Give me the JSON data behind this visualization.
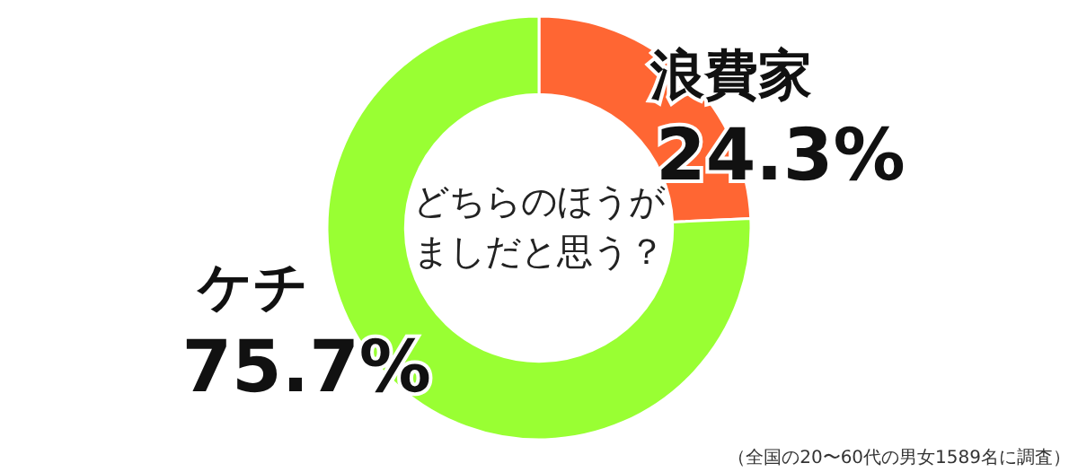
{
  "chart_data": {
    "type": "donut",
    "title": "どちらのほうがましだと思う？",
    "categories": [
      "浪費家",
      "ケチ"
    ],
    "values": [
      24.3,
      75.7
    ],
    "colors": [
      "#ff6633",
      "#99ff33"
    ],
    "value_labels": [
      "24.3%",
      "75.7%"
    ],
    "annotations": [
      "（全国の20〜60代の男女1589名に調査）"
    ]
  }
}
